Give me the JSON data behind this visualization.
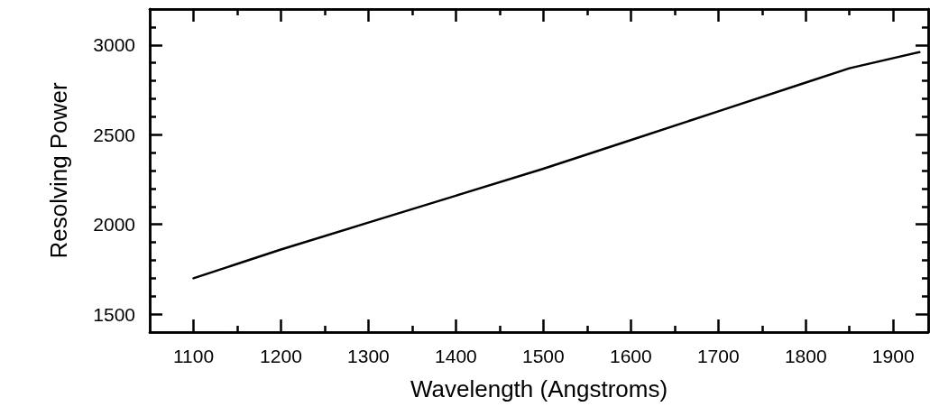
{
  "chart_data": {
    "type": "line",
    "xlabel": "Wavelength (Angstroms)",
    "ylabel": "Resolving Power",
    "x": [
      1100,
      1200,
      1300,
      1400,
      1500,
      1600,
      1700,
      1800,
      1850,
      1930
    ],
    "series": [
      {
        "color": "#000000",
        "values": [
          1700,
          1860,
          2010,
          2160,
          2310,
          2470,
          2630,
          2790,
          2870,
          2960
        ]
      }
    ],
    "xlim": [
      1050,
      1940
    ],
    "xticks": [
      1100,
      {
        "value": 1150,
        "label": null
      },
      1200,
      {
        "value": 1250,
        "label": null
      },
      1300,
      {
        "value": 1350,
        "label": null
      },
      1400,
      {
        "value": 1450,
        "label": null
      },
      1500,
      {
        "value": 1550,
        "label": null
      },
      1600,
      {
        "value": 1650,
        "label": null
      },
      1700,
      {
        "value": 1750,
        "label": null
      },
      1800,
      {
        "value": 1850,
        "label": null
      },
      1900
    ],
    "ylim": [
      1400,
      3200
    ],
    "yticks": [
      1500,
      {
        "value": 1600,
        "label": null
      },
      {
        "value": 1700,
        "label": null
      },
      {
        "value": 1800,
        "label": null
      },
      {
        "value": 1900,
        "label": null
      },
      2000,
      {
        "value": 2100,
        "label": null
      },
      {
        "value": 2200,
        "label": null
      },
      {
        "value": 2300,
        "label": null
      },
      {
        "value": 2400,
        "label": null
      },
      2500,
      {
        "value": 2600,
        "label": null
      },
      {
        "value": 2700,
        "label": null
      },
      {
        "value": 2800,
        "label": null
      },
      {
        "value": 2900,
        "label": null
      },
      3000,
      {
        "value": 3100,
        "label": null
      }
    ],
    "grid": false,
    "marker": "none",
    "line_style": "solid"
  }
}
